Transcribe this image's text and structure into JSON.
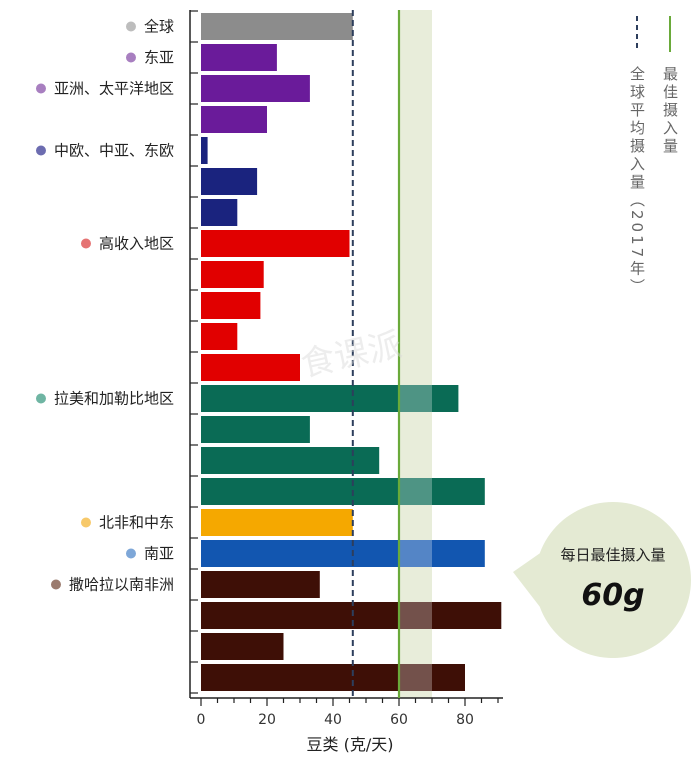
{
  "chart_data": {
    "type": "bar",
    "orientation": "horizontal",
    "xlabel": "豆类 (克/天)",
    "xlim": [
      0,
      90
    ],
    "xticks": [
      0,
      20,
      40,
      60,
      80
    ],
    "bars": [
      {
        "value": 46,
        "color": "#8c8c8c"
      },
      {
        "value": 23,
        "color": "#6a1b9a"
      },
      {
        "value": 33,
        "color": "#6a1b9a"
      },
      {
        "value": 20,
        "color": "#6a1b9a"
      },
      {
        "value": 2,
        "color": "#1a237e"
      },
      {
        "value": 17,
        "color": "#1a237e"
      },
      {
        "value": 11,
        "color": "#1a237e"
      },
      {
        "value": 45,
        "color": "#e10000"
      },
      {
        "value": 19,
        "color": "#e10000"
      },
      {
        "value": 18,
        "color": "#e10000"
      },
      {
        "value": 11,
        "color": "#e10000"
      },
      {
        "value": 30,
        "color": "#e10000"
      },
      {
        "value": 78,
        "color": "#0a6b55"
      },
      {
        "value": 33,
        "color": "#0a6b55"
      },
      {
        "value": 54,
        "color": "#0a6b55"
      },
      {
        "value": 86,
        "color": "#0a6b55"
      },
      {
        "value": 46,
        "color": "#f5a800"
      },
      {
        "value": 86,
        "color": "#1256b0"
      },
      {
        "value": 36,
        "color": "#3e0f06"
      },
      {
        "value": 91,
        "color": "#3e0f06"
      },
      {
        "value": 25,
        "color": "#3e0f06"
      },
      {
        "value": 80,
        "color": "#3e0f06"
      }
    ],
    "regions": [
      {
        "label": "全球",
        "dot_color": "#bdbdbd",
        "bar_index": 0
      },
      {
        "label": "东亚",
        "dot_color": "#a87fc0",
        "bar_index": 1
      },
      {
        "label": "亚洲、太平洋地区",
        "dot_color": "#a87fc0",
        "bar_index": 2
      },
      {
        "label": "中欧、中亚、东欧",
        "dot_color": "#6c6cb0",
        "bar_index": 4
      },
      {
        "label": "高收入地区",
        "dot_color": "#e57373",
        "bar_index": 7
      },
      {
        "label": "拉美和加勒比地区",
        "dot_color": "#6fb5a3",
        "bar_index": 12
      },
      {
        "label": "北非和中东",
        "dot_color": "#f7c96a",
        "bar_index": 16
      },
      {
        "label": "南亚",
        "dot_color": "#7ea7d8",
        "bar_index": 17
      },
      {
        "label": "撒哈拉以南非洲",
        "dot_color": "#9b7b6e",
        "bar_index": 18
      }
    ],
    "reference_lines": [
      {
        "label": "全球平均摄入量（2017年）",
        "value": 46,
        "style": "dashed",
        "color": "#2d3e5c"
      },
      {
        "label": "最佳摄入量",
        "value": 60,
        "style": "solid",
        "color": "#6aaa3a"
      }
    ],
    "optimal_range": [
      60,
      70
    ],
    "band_color": "#dfe6cc",
    "callout": {
      "title": "每日最佳摄入量",
      "value": "60g",
      "bg": "#e4ead3"
    },
    "watermark": "食课派"
  }
}
